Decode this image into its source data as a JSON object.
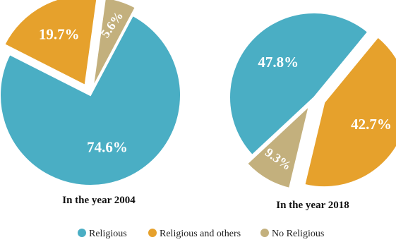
{
  "chart_data": [
    {
      "type": "pie",
      "title": "In the year 2004",
      "categories": [
        "Religious",
        "Religious and others",
        "No Religious"
      ],
      "values": [
        74.6,
        19.7,
        5.6
      ],
      "labels": [
        "74.6%",
        "19.7%",
        "5.6%"
      ]
    },
    {
      "type": "pie",
      "title": "In the year 2018",
      "categories": [
        "Religious",
        "Religious and others",
        "No Religious"
      ],
      "values": [
        47.8,
        42.7,
        9.3
      ],
      "labels": [
        "47.8%",
        "42.7%",
        "9.3%"
      ]
    }
  ],
  "legend": {
    "placement": "bottom",
    "items": [
      {
        "label": "Religious",
        "color": "#4aaec4"
      },
      {
        "label": "Religious and others",
        "color": "#e6a12c"
      },
      {
        "label": "No Religious",
        "color": "#c3b07d"
      }
    ]
  },
  "colors": [
    "#4aaec4",
    "#e6a12c",
    "#c3b07d"
  ]
}
